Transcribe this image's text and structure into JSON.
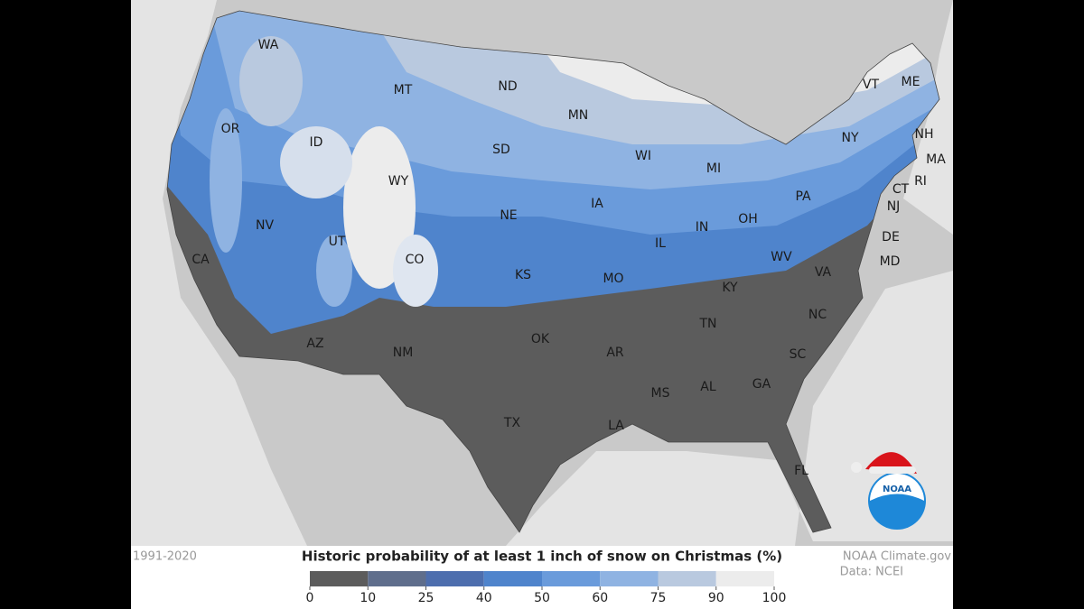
{
  "map": {
    "title": "Historic probability of at least 1 inch of snow on Christmas (%)",
    "period": "1991-2020",
    "credit": "NOAA Climate.gov",
    "source": "Data: NCEI",
    "logo_text": "NOAA",
    "legend": {
      "ticks": [
        0,
        10,
        25,
        40,
        50,
        60,
        75,
        90,
        100
      ],
      "colors": [
        "#5c5c5c",
        "#5f6e8c",
        "#4d6eae",
        "#4f84cc",
        "#6a9bdb",
        "#8fb3e2",
        "#b9c9df",
        "#ececec"
      ]
    },
    "states": [
      "WA",
      "OR",
      "CA",
      "ID",
      "NV",
      "MT",
      "WY",
      "UT",
      "CO",
      "AZ",
      "NM",
      "ND",
      "SD",
      "NE",
      "KS",
      "OK",
      "TX",
      "MN",
      "IA",
      "MO",
      "AR",
      "LA",
      "WI",
      "IL",
      "MI",
      "IN",
      "OH",
      "KY",
      "TN",
      "MS",
      "AL",
      "GA",
      "FL",
      "SC",
      "NC",
      "VA",
      "WV",
      "PA",
      "NY",
      "VT",
      "NH",
      "ME",
      "MA",
      "RI",
      "CT",
      "NJ",
      "DE",
      "MD"
    ]
  }
}
